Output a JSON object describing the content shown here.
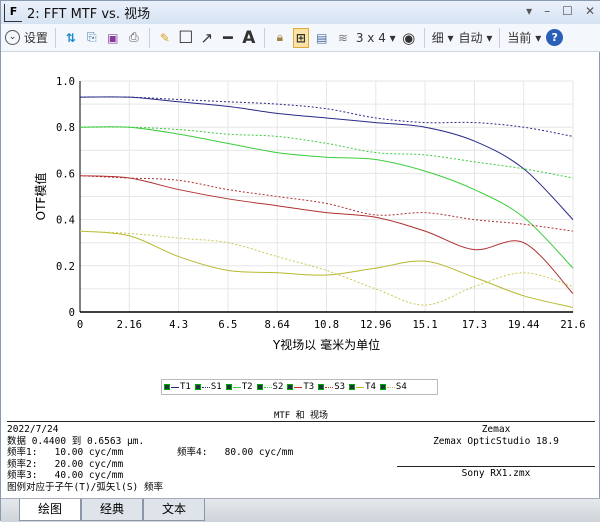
{
  "window": {
    "title": "2: FFT MTF vs. 视场",
    "controls": [
      "▾",
      "–",
      "☐",
      "✕"
    ]
  },
  "toolbar": {
    "settings": "设置",
    "layout": "3 x 4 ▾",
    "thin": "细 ▾",
    "auto": "自动 ▾",
    "current": "当前 ▾"
  },
  "chart_data": {
    "type": "line",
    "xlabel": "Y视场以  毫米为单位",
    "ylabel": "OTF模值",
    "xticks": [
      "0",
      "2.16",
      "4.3",
      "6.5",
      "8.64",
      "10.8",
      "12.96",
      "15.1",
      "17.3",
      "19.44",
      "21.6"
    ],
    "yticks": [
      "0",
      "0.2",
      "0.4",
      "0.6",
      "0.8",
      "1.0"
    ],
    "xlim": [
      0,
      21.6
    ],
    "ylim": [
      0,
      1
    ],
    "grid": true,
    "legend": "bottom",
    "x": [
      0,
      2.16,
      4.32,
      6.48,
      8.64,
      10.8,
      12.96,
      15.12,
      17.28,
      19.44,
      21.6
    ],
    "series": [
      {
        "name": "T1",
        "color": "#2a2a8a",
        "dash": false,
        "values": [
          0.93,
          0.93,
          0.91,
          0.89,
          0.86,
          0.84,
          0.82,
          0.8,
          0.74,
          0.62,
          0.4
        ]
      },
      {
        "name": "S1",
        "color": "#2a2a8a",
        "dash": true,
        "values": [
          0.93,
          0.93,
          0.92,
          0.91,
          0.9,
          0.88,
          0.84,
          0.82,
          0.82,
          0.8,
          0.76
        ]
      },
      {
        "name": "T2",
        "color": "#3ccc3c",
        "dash": false,
        "values": [
          0.8,
          0.8,
          0.77,
          0.73,
          0.69,
          0.67,
          0.66,
          0.61,
          0.53,
          0.41,
          0.19
        ]
      },
      {
        "name": "S2",
        "color": "#3ccc3c",
        "dash": true,
        "values": [
          0.8,
          0.8,
          0.79,
          0.77,
          0.76,
          0.73,
          0.69,
          0.68,
          0.65,
          0.62,
          0.58
        ]
      },
      {
        "name": "T3",
        "color": "#b03030",
        "dash": false,
        "values": [
          0.59,
          0.58,
          0.53,
          0.49,
          0.46,
          0.43,
          0.41,
          0.35,
          0.27,
          0.3,
          0.08
        ]
      },
      {
        "name": "S3",
        "color": "#b03030",
        "dash": true,
        "values": [
          0.59,
          0.58,
          0.57,
          0.53,
          0.5,
          0.47,
          0.42,
          0.43,
          0.4,
          0.38,
          0.35
        ]
      },
      {
        "name": "T4",
        "color": "#b8b830",
        "dash": false,
        "values": [
          0.35,
          0.33,
          0.24,
          0.18,
          0.17,
          0.16,
          0.19,
          0.22,
          0.15,
          0.07,
          0.02
        ]
      },
      {
        "name": "S4",
        "color": "#c8c850",
        "dash": true,
        "values": [
          0.35,
          0.34,
          0.32,
          0.3,
          0.24,
          0.18,
          0.1,
          0.03,
          0.11,
          0.17,
          0.11
        ]
      }
    ],
    "title": "MTF 和 视场"
  },
  "info": {
    "date": "2022/7/24",
    "data": "数据 0.4400 到 0.6563 μm.",
    "f1": "频率1:   10.00 cyc/mm",
    "f2": "频率2:   20.00 cyc/mm",
    "f3": "频率3:   40.00 cyc/mm",
    "f4": "频率4:   80.00 cyc/mm",
    "note": "图例对应于子午(T)/弧矢l(S) 频率",
    "company": "Zemax",
    "product": "Zemax OpticStudio 18.9",
    "file": "Sony RX1.zmx"
  },
  "tabs": [
    "绘图",
    "经典",
    "文本"
  ]
}
